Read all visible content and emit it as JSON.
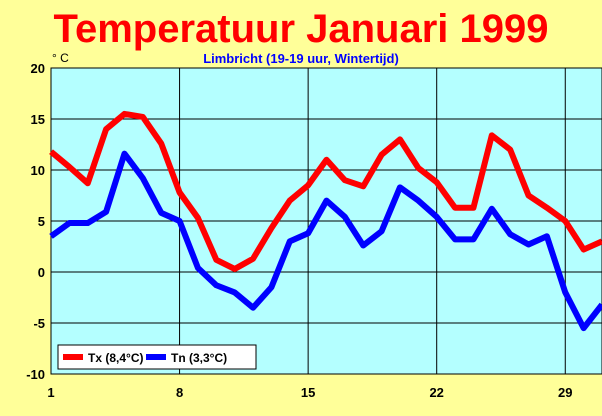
{
  "chart_data": {
    "type": "line",
    "title": "Temperatuur Januari 1999",
    "subtitle": "Limbricht (19-19 uur, Wintertijd)",
    "ylabel": "° C",
    "xlabel": "",
    "xlim": [
      1,
      31
    ],
    "ylim": [
      -10,
      20
    ],
    "x_ticks": [
      1,
      8,
      15,
      22,
      29
    ],
    "y_ticks": [
      20,
      15,
      10,
      5,
      0,
      -5,
      -10
    ],
    "grid": true,
    "legend_position": "bottom-left",
    "x": [
      1,
      2,
      3,
      4,
      5,
      6,
      7,
      8,
      9,
      10,
      11,
      12,
      13,
      14,
      15,
      16,
      17,
      18,
      19,
      20,
      21,
      22,
      23,
      24,
      25,
      26,
      27,
      28,
      29,
      30,
      31
    ],
    "series": [
      {
        "name": "Tx (8,4°C)",
        "color": "#FF0000",
        "values": [
          11.8,
          10.3,
          8.7,
          14.0,
          15.5,
          15.2,
          12.6,
          7.8,
          5.3,
          1.2,
          0.3,
          1.3,
          4.3,
          7.0,
          8.5,
          11.0,
          9.0,
          8.4,
          11.5,
          13.0,
          10.2,
          8.8,
          6.3,
          6.3,
          13.4,
          12.0,
          7.5,
          6.3,
          5.0,
          2.2,
          3.0
        ]
      },
      {
        "name": "Tn (3,3°C)",
        "color": "#0000FF",
        "values": [
          3.5,
          4.8,
          4.8,
          5.9,
          11.6,
          9.2,
          5.8,
          5.0,
          0.4,
          -1.3,
          -2.0,
          -3.5,
          -1.5,
          3.0,
          3.8,
          7.0,
          5.4,
          2.6,
          4.0,
          8.3,
          7.0,
          5.4,
          3.2,
          3.2,
          6.2,
          3.7,
          2.7,
          3.5,
          -2.0,
          -5.5,
          -3.2
        ]
      }
    ]
  }
}
